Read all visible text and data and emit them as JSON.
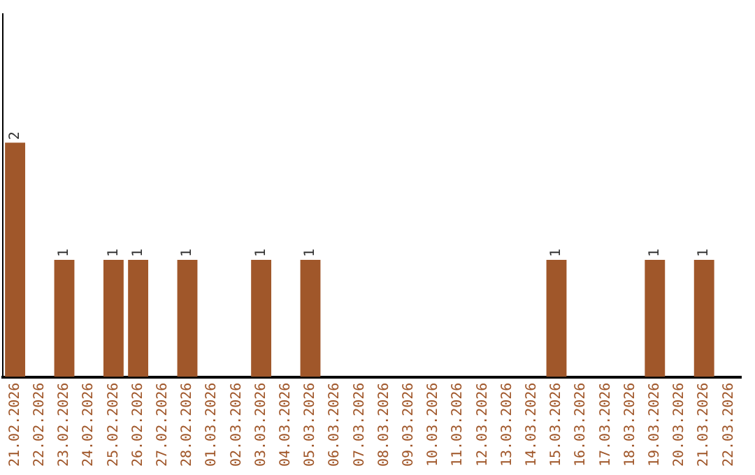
{
  "chart_data": {
    "type": "bar",
    "categories": [
      "21.02.2026",
      "22.02.2026",
      "23.02.2026",
      "24.02.2026",
      "25.02.2026",
      "26.02.2026",
      "27.02.2026",
      "28.02.2026",
      "01.03.2026",
      "02.03.2026",
      "03.03.2026",
      "04.03.2026",
      "05.03.2026",
      "06.03.2026",
      "07.03.2026",
      "08.03.2026",
      "09.03.2026",
      "10.03.2026",
      "11.03.2026",
      "12.03.2026",
      "13.03.2026",
      "14.03.2026",
      "15.03.2026",
      "16.03.2026",
      "17.03.2026",
      "18.03.2026",
      "19.03.2026",
      "20.03.2026",
      "21.03.2026",
      "22.03.2026"
    ],
    "values": [
      2,
      0,
      1,
      0,
      1,
      1,
      0,
      1,
      0,
      0,
      1,
      0,
      1,
      0,
      0,
      0,
      0,
      0,
      0,
      0,
      0,
      0,
      1,
      0,
      0,
      0,
      1,
      0,
      1,
      0
    ],
    "value_labels": [
      "2",
      null,
      "1",
      null,
      "1",
      "1",
      null,
      "1",
      null,
      null,
      "1",
      null,
      "1",
      null,
      null,
      null,
      null,
      null,
      null,
      null,
      null,
      null,
      "1",
      null,
      null,
      null,
      "1",
      null,
      "1",
      null
    ],
    "color": "#a0572a",
    "ylim": [
      0,
      3.1
    ],
    "tick_labels": "x",
    "grid": false,
    "legend": false
  }
}
